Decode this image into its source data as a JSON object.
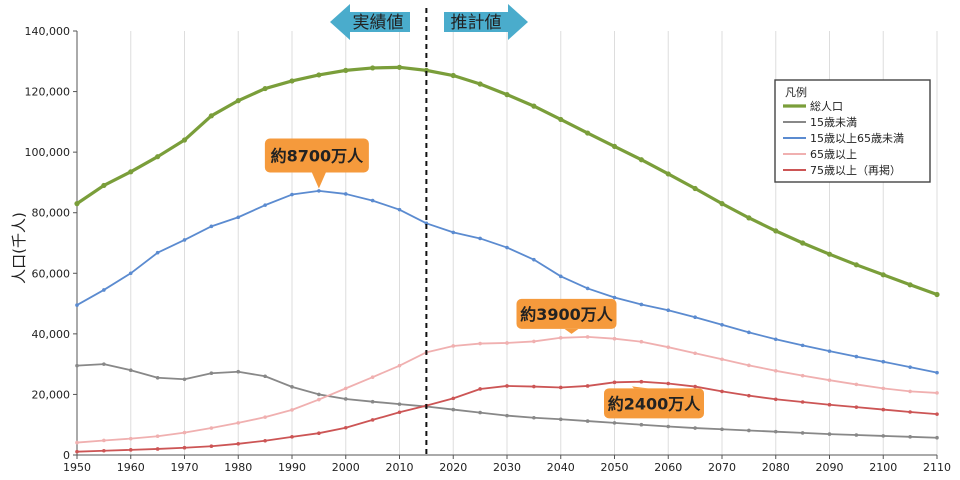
{
  "chart_data": {
    "type": "line",
    "ylabel": "人口(千人)",
    "x_ticks": [
      1950,
      1960,
      1970,
      1980,
      1990,
      2000,
      2010,
      2020,
      2030,
      2040,
      2050,
      2060,
      2070,
      2080,
      2090,
      2100,
      2110
    ],
    "y_ticks": [
      0,
      20000,
      40000,
      60000,
      80000,
      100000,
      120000,
      140000
    ],
    "y_tick_labels": [
      "0",
      "20,000",
      "40,000",
      "60,000",
      "80,000",
      "100,000",
      "120,000",
      "140,000"
    ],
    "xlim": [
      1950,
      2110
    ],
    "ylim": [
      0,
      140000
    ],
    "grid": "vertical",
    "divider_year": 2015,
    "arrows": {
      "actual": "実績値",
      "projected": "推計値"
    },
    "legend": {
      "title": "凡例",
      "position": "right",
      "entries": [
        "総人口",
        "15歳未満",
        "15歳以上65歳未満",
        "65歳以上",
        "75歳以上（再掲）"
      ]
    },
    "callouts": [
      {
        "text": "約8700万人",
        "x": 1995,
        "y": 87000
      },
      {
        "text": "約3900万人",
        "x": 2042,
        "y": 39000
      },
      {
        "text": "約2400万人",
        "x": 2054,
        "y": 24000
      }
    ],
    "series": [
      {
        "name": "総人口",
        "color": "#7a9e3a",
        "points": [
          [
            1950,
            83000
          ],
          [
            1955,
            89000
          ],
          [
            1960,
            93500
          ],
          [
            1965,
            98500
          ],
          [
            1970,
            104000
          ],
          [
            1975,
            112000
          ],
          [
            1980,
            117000
          ],
          [
            1985,
            121000
          ],
          [
            1990,
            123500
          ],
          [
            1995,
            125500
          ],
          [
            2000,
            127000
          ],
          [
            2005,
            127800
          ],
          [
            2010,
            128000
          ],
          [
            2015,
            127000
          ],
          [
            2020,
            125300
          ],
          [
            2025,
            122500
          ],
          [
            2030,
            119000
          ],
          [
            2035,
            115200
          ],
          [
            2040,
            110800
          ],
          [
            2045,
            106300
          ],
          [
            2050,
            101900
          ],
          [
            2055,
            97500
          ],
          [
            2060,
            92800
          ],
          [
            2065,
            88000
          ],
          [
            2070,
            83000
          ],
          [
            2075,
            78300
          ],
          [
            2080,
            74000
          ],
          [
            2085,
            70000
          ],
          [
            2090,
            66300
          ],
          [
            2095,
            62800
          ],
          [
            2100,
            59500
          ],
          [
            2105,
            56200
          ],
          [
            2110,
            53000
          ]
        ]
      },
      {
        "name": "15歳以上65歳未満",
        "color": "#5b8bd0",
        "points": [
          [
            1950,
            49500
          ],
          [
            1955,
            54500
          ],
          [
            1960,
            60000
          ],
          [
            1965,
            66800
          ],
          [
            1970,
            71000
          ],
          [
            1975,
            75500
          ],
          [
            1980,
            78500
          ],
          [
            1985,
            82500
          ],
          [
            1990,
            86000
          ],
          [
            1995,
            87200
          ],
          [
            2000,
            86200
          ],
          [
            2005,
            84000
          ],
          [
            2010,
            81000
          ],
          [
            2015,
            76500
          ],
          [
            2020,
            73500
          ],
          [
            2025,
            71500
          ],
          [
            2030,
            68500
          ],
          [
            2035,
            64500
          ],
          [
            2040,
            59000
          ],
          [
            2045,
            55000
          ],
          [
            2050,
            52000
          ],
          [
            2055,
            49700
          ],
          [
            2060,
            47800
          ],
          [
            2065,
            45500
          ],
          [
            2070,
            43000
          ],
          [
            2075,
            40500
          ],
          [
            2080,
            38200
          ],
          [
            2085,
            36200
          ],
          [
            2090,
            34300
          ],
          [
            2095,
            32500
          ],
          [
            2100,
            30800
          ],
          [
            2105,
            29000
          ],
          [
            2110,
            27200
          ]
        ]
      },
      {
        "name": "15歳未満",
        "color": "#888888",
        "points": [
          [
            1950,
            29500
          ],
          [
            1955,
            30000
          ],
          [
            1960,
            28000
          ],
          [
            1965,
            25500
          ],
          [
            1970,
            25000
          ],
          [
            1975,
            27000
          ],
          [
            1980,
            27500
          ],
          [
            1985,
            26000
          ],
          [
            1990,
            22500
          ],
          [
            1995,
            20000
          ],
          [
            2000,
            18500
          ],
          [
            2005,
            17600
          ],
          [
            2010,
            16800
          ],
          [
            2015,
            16000
          ],
          [
            2020,
            15000
          ],
          [
            2025,
            14000
          ],
          [
            2030,
            13000
          ],
          [
            2035,
            12300
          ],
          [
            2040,
            11800
          ],
          [
            2045,
            11200
          ],
          [
            2050,
            10600
          ],
          [
            2055,
            10000
          ],
          [
            2060,
            9400
          ],
          [
            2065,
            8900
          ],
          [
            2070,
            8500
          ],
          [
            2075,
            8100
          ],
          [
            2080,
            7700
          ],
          [
            2085,
            7300
          ],
          [
            2090,
            6900
          ],
          [
            2095,
            6600
          ],
          [
            2100,
            6300
          ],
          [
            2105,
            6000
          ],
          [
            2110,
            5700
          ]
        ]
      },
      {
        "name": "65歳以上",
        "color": "#f0b0b0",
        "points": [
          [
            1950,
            4100
          ],
          [
            1955,
            4800
          ],
          [
            1960,
            5400
          ],
          [
            1965,
            6200
          ],
          [
            1970,
            7400
          ],
          [
            1975,
            8900
          ],
          [
            1980,
            10600
          ],
          [
            1985,
            12500
          ],
          [
            1990,
            14900
          ],
          [
            1995,
            18300
          ],
          [
            2000,
            22000
          ],
          [
            2005,
            25700
          ],
          [
            2010,
            29500
          ],
          [
            2015,
            33900
          ],
          [
            2020,
            36000
          ],
          [
            2025,
            36800
          ],
          [
            2030,
            37000
          ],
          [
            2035,
            37500
          ],
          [
            2040,
            38700
          ],
          [
            2045,
            39000
          ],
          [
            2050,
            38400
          ],
          [
            2055,
            37400
          ],
          [
            2060,
            35600
          ],
          [
            2065,
            33600
          ],
          [
            2070,
            31600
          ],
          [
            2075,
            29600
          ],
          [
            2080,
            27800
          ],
          [
            2085,
            26200
          ],
          [
            2090,
            24700
          ],
          [
            2095,
            23300
          ],
          [
            2100,
            22000
          ],
          [
            2105,
            21000
          ],
          [
            2110,
            20500
          ]
        ]
      },
      {
        "name": "75歳以上（再掲）",
        "color": "#cc5555",
        "points": [
          [
            1950,
            1100
          ],
          [
            1955,
            1400
          ],
          [
            1960,
            1700
          ],
          [
            1965,
            2000
          ],
          [
            1970,
            2400
          ],
          [
            1975,
            2900
          ],
          [
            1980,
            3700
          ],
          [
            1985,
            4700
          ],
          [
            1990,
            6000
          ],
          [
            1995,
            7200
          ],
          [
            2000,
            9000
          ],
          [
            2005,
            11600
          ],
          [
            2010,
            14100
          ],
          [
            2015,
            16300
          ],
          [
            2020,
            18700
          ],
          [
            2025,
            21800
          ],
          [
            2030,
            22800
          ],
          [
            2035,
            22600
          ],
          [
            2040,
            22300
          ],
          [
            2045,
            22800
          ],
          [
            2050,
            24000
          ],
          [
            2055,
            24200
          ],
          [
            2060,
            23600
          ],
          [
            2065,
            22600
          ],
          [
            2070,
            21000
          ],
          [
            2075,
            19600
          ],
          [
            2080,
            18400
          ],
          [
            2085,
            17500
          ],
          [
            2090,
            16600
          ],
          [
            2095,
            15800
          ],
          [
            2100,
            15000
          ],
          [
            2105,
            14200
          ],
          [
            2110,
            13500
          ]
        ]
      }
    ]
  }
}
